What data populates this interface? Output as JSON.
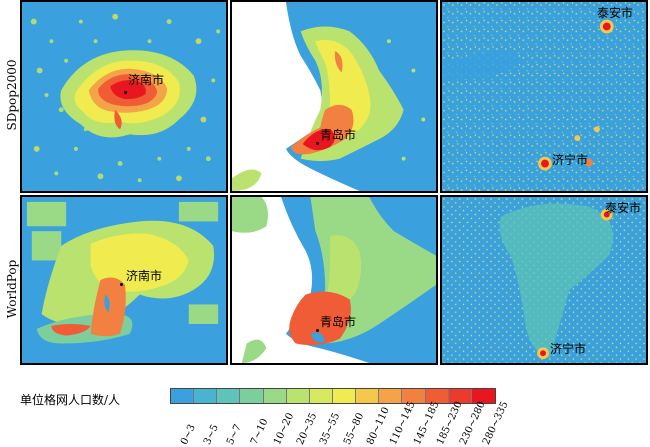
{
  "row_labels": [
    "SDpop2000",
    "WorldPop"
  ],
  "panels": [
    {
      "id": "sd-jinan",
      "cities": [
        "济南市"
      ]
    },
    {
      "id": "sd-qingdao",
      "cities": [
        "青岛市"
      ]
    },
    {
      "id": "sd-taian-jining",
      "cities": [
        "泰安市",
        "济宁市"
      ]
    },
    {
      "id": "wp-jinan",
      "cities": [
        "济南市"
      ]
    },
    {
      "id": "wp-qingdao",
      "cities": [
        "青岛市"
      ]
    },
    {
      "id": "wp-taian-jining",
      "cities": [
        "泰安市",
        "济宁市"
      ]
    }
  ],
  "legend": {
    "title": "单位格网人口数/人",
    "classes": [
      {
        "label": "0~3",
        "color": "#3aa0de"
      },
      {
        "label": "3~5",
        "color": "#48b4d2"
      },
      {
        "label": "5~7",
        "color": "#5ec3b8"
      },
      {
        "label": "7~10",
        "color": "#7ccf9c"
      },
      {
        "label": "10~20",
        "color": "#9ad985"
      },
      {
        "label": "20~35",
        "color": "#b9e36e"
      },
      {
        "label": "35~55",
        "color": "#d7ea5e"
      },
      {
        "label": "55~80",
        "color": "#f0ec4f"
      },
      {
        "label": "80~110",
        "color": "#f5c84a"
      },
      {
        "label": "110~145",
        "color": "#f4a446"
      },
      {
        "label": "145~185",
        "color": "#f28040"
      },
      {
        "label": "185~230",
        "color": "#ef5c36"
      },
      {
        "label": "230~280",
        "color": "#ec3a2c"
      },
      {
        "label": "280~335",
        "color": "#e8171f"
      }
    ]
  }
}
